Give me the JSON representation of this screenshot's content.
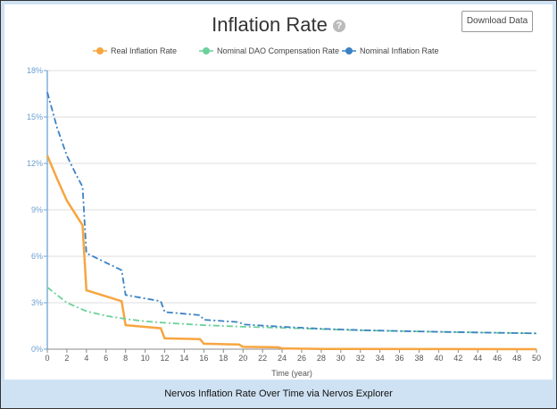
{
  "title": "Inflation Rate",
  "help_icon": "question-circle-icon",
  "download_label": "Download Data",
  "caption": "Nervos Inflation Rate Over Time via Nervos Explorer",
  "chart_data": {
    "type": "line",
    "title": "Inflation Rate",
    "xlabel": "Time (year)",
    "ylabel": "",
    "xlim": [
      0,
      50
    ],
    "ylim": [
      0,
      18
    ],
    "xticks": [
      0,
      2,
      4,
      6,
      8,
      10,
      12,
      14,
      16,
      18,
      20,
      22,
      24,
      26,
      28,
      30,
      32,
      34,
      36,
      38,
      40,
      42,
      44,
      46,
      48,
      50
    ],
    "yticks": [
      "0%",
      "3%",
      "6%",
      "9%",
      "12%",
      "15%",
      "18%"
    ],
    "grid": "horizontal",
    "legend": "top",
    "series": [
      {
        "name": "Real Inflation Rate",
        "color": "#f7a540",
        "style": "solid",
        "x": [
          0,
          1,
          2,
          3,
          3.6,
          4,
          7.6,
          8,
          11.6,
          12,
          15.6,
          16,
          19.6,
          20,
          23.6,
          24,
          28,
          50
        ],
        "y": [
          12.5,
          11.0,
          9.6,
          8.6,
          8.0,
          3.8,
          3.1,
          1.55,
          1.35,
          0.7,
          0.65,
          0.35,
          0.3,
          0.15,
          0.12,
          0.05,
          0.02,
          0
        ]
      },
      {
        "name": "Nominal DAO Compensation Rate",
        "color": "#6bd19a",
        "style": "dashdot",
        "x": [
          0,
          2,
          4,
          6,
          8,
          10,
          12,
          16,
          20,
          24,
          28,
          32,
          36,
          40,
          44,
          48,
          50
        ],
        "y": [
          4.0,
          3.0,
          2.45,
          2.15,
          1.95,
          1.8,
          1.7,
          1.55,
          1.45,
          1.38,
          1.3,
          1.22,
          1.17,
          1.12,
          1.08,
          1.04,
          1.02
        ]
      },
      {
        "name": "Nominal Inflation Rate",
        "color": "#3b82c4",
        "style": "dashdot",
        "x": [
          0,
          1,
          2,
          3,
          3.6,
          4,
          7.6,
          8,
          11.6,
          12,
          15.6,
          16,
          19.6,
          20,
          24,
          28,
          32,
          36,
          40,
          44,
          48,
          50
        ],
        "y": [
          16.6,
          14.3,
          12.5,
          11.2,
          10.5,
          6.2,
          5.1,
          3.5,
          3.1,
          2.4,
          2.2,
          1.9,
          1.75,
          1.6,
          1.45,
          1.32,
          1.23,
          1.17,
          1.12,
          1.08,
          1.04,
          1.02
        ]
      }
    ]
  }
}
